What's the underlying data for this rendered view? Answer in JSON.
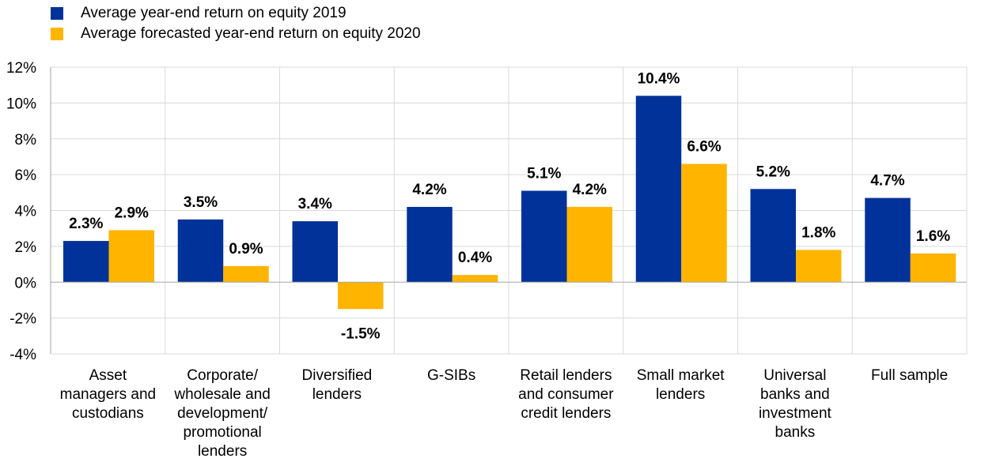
{
  "colors": {
    "series_2019": "#003299",
    "series_2020": "#FFB400",
    "grid": "#D9D9D9",
    "axis": "#A6A6A6"
  },
  "chart_data": {
    "type": "bar",
    "categories": [
      [
        "Asset",
        "managers and",
        "custodians"
      ],
      [
        "Corporate/",
        "wholesale and",
        "development/",
        "promotional",
        "lenders"
      ],
      [
        "Diversified",
        "lenders"
      ],
      [
        "G-SIBs"
      ],
      [
        "Retail lenders",
        "and consumer",
        "credit lenders"
      ],
      [
        "Small market",
        "lenders"
      ],
      [
        "Universal",
        "banks and",
        "investment",
        "banks"
      ],
      [
        "Full sample"
      ]
    ],
    "series": [
      {
        "name": "Average year-end return on equity 2019",
        "values": [
          2.3,
          3.5,
          3.4,
          4.2,
          5.1,
          10.4,
          5.2,
          4.7
        ],
        "labels": [
          "2.3%",
          "3.5%",
          "3.4%",
          "4.2%",
          "5.1%",
          "10.4%",
          "5.2%",
          "4.7%"
        ]
      },
      {
        "name": "Average forecasted year-end return on equity 2020",
        "values": [
          2.9,
          0.9,
          -1.5,
          0.4,
          4.2,
          6.6,
          1.8,
          1.6
        ],
        "labels": [
          "2.9%",
          "0.9%",
          "-1.5%",
          "0.4%",
          "4.2%",
          "6.6%",
          "1.8%",
          "1.6%"
        ]
      }
    ],
    "ylim": [
      -4,
      12
    ],
    "yticks": [
      12,
      10,
      8,
      6,
      4,
      2,
      0,
      -2,
      -4
    ],
    "ytick_labels": [
      "12%",
      "10%",
      "8%",
      "6%",
      "4%",
      "2%",
      "0%",
      "-2%",
      "-4%"
    ],
    "grid": true,
    "legend_position": "top-left",
    "title": "",
    "xlabel": "",
    "ylabel": ""
  }
}
